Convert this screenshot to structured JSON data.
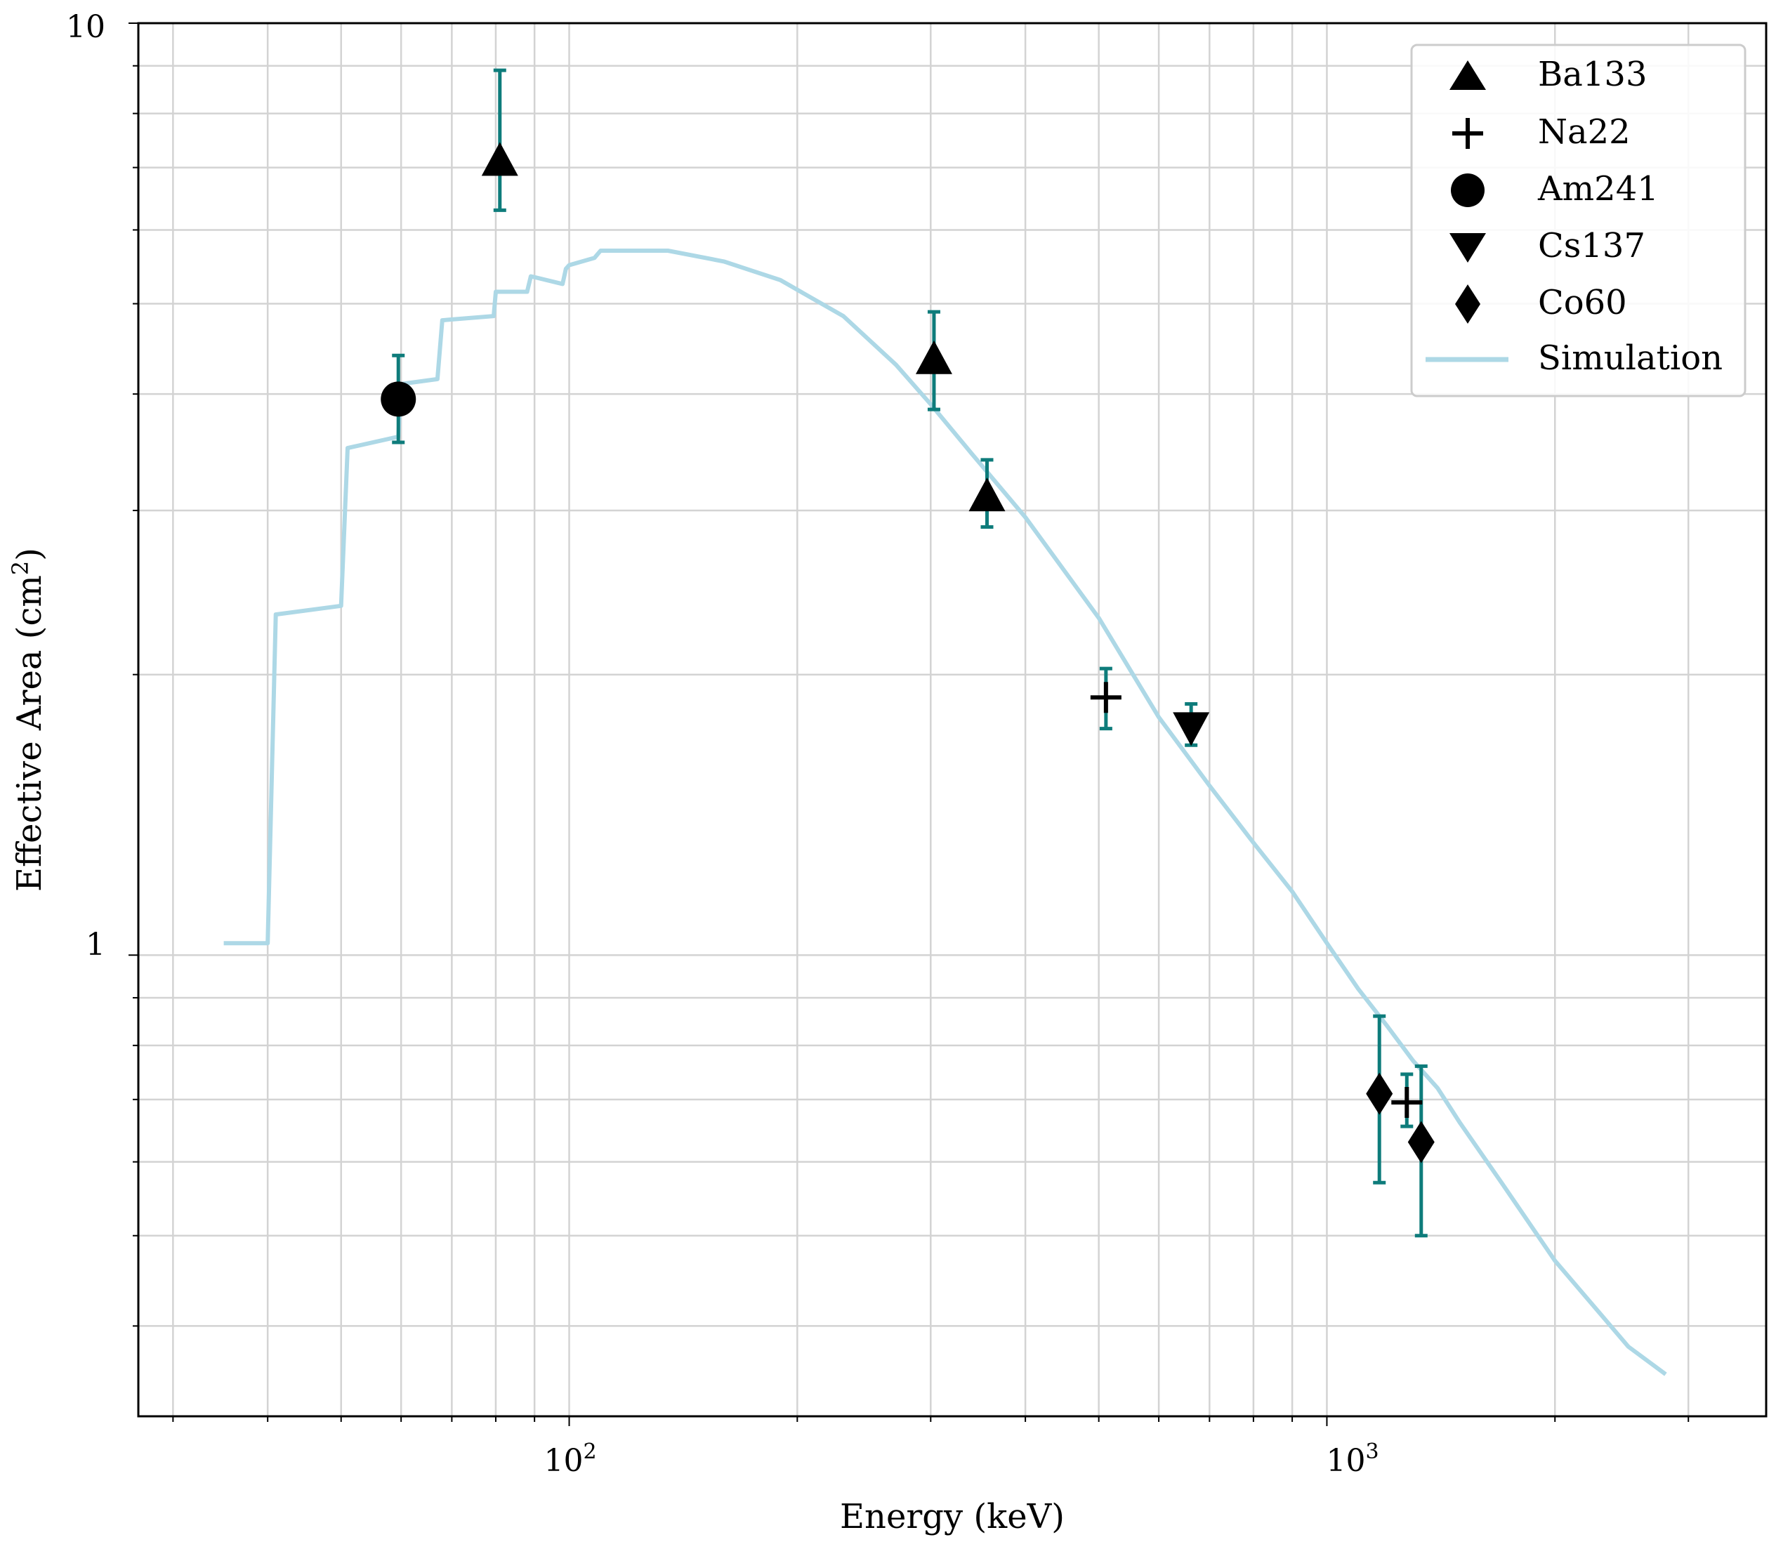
{
  "chart_data": {
    "type": "scatter",
    "xscale": "log",
    "yscale": "log",
    "xlim": [
      27,
      3800
    ],
    "ylim": [
      0.32,
      10
    ],
    "xlabel": "Energy (keV)",
    "ylabel_main": "Effective Area (cm",
    "ylabel_sup": "2",
    "ylabel_close": ")",
    "grid": true,
    "x_major_ticks": [
      {
        "value": 100,
        "base": "10",
        "exp": "2"
      },
      {
        "value": 1000,
        "base": "10",
        "exp": "3"
      }
    ],
    "y_major_ticks": [
      {
        "value": 1,
        "label": "1"
      },
      {
        "value": 10,
        "label": "10"
      }
    ],
    "legend_position": "top-right",
    "colors": {
      "marker": "#000000",
      "errorbar": "#0e7c7b",
      "simulation": "#add8e6",
      "grid": "#d3d3d3"
    },
    "series": [
      {
        "name": "Ba133",
        "marker": "triangle-up",
        "points": [
          {
            "x": 81,
            "y": 7.1,
            "ylo": 6.3,
            "yhi": 8.9
          },
          {
            "x": 303,
            "y": 4.35,
            "ylo": 3.85,
            "yhi": 4.9
          },
          {
            "x": 356,
            "y": 3.1,
            "ylo": 2.88,
            "yhi": 3.4
          }
        ]
      },
      {
        "name": "Na22",
        "marker": "plus",
        "points": [
          {
            "x": 511,
            "y": 1.89,
            "ylo": 1.75,
            "yhi": 2.03
          },
          {
            "x": 1275,
            "y": 0.695,
            "ylo": 0.655,
            "yhi": 0.745
          }
        ]
      },
      {
        "name": "Am241",
        "marker": "circle",
        "points": [
          {
            "x": 59.5,
            "y": 3.95,
            "ylo": 3.55,
            "yhi": 4.4
          }
        ]
      },
      {
        "name": "Cs137",
        "marker": "triangle-down",
        "points": [
          {
            "x": 662,
            "y": 1.76,
            "ylo": 1.68,
            "yhi": 1.86
          }
        ]
      },
      {
        "name": "Co60",
        "marker": "diamond",
        "points": [
          {
            "x": 1173,
            "y": 0.71,
            "ylo": 0.57,
            "yhi": 0.86
          },
          {
            "x": 1332,
            "y": 0.63,
            "ylo": 0.5,
            "yhi": 0.76
          }
        ]
      }
    ],
    "simulation": {
      "name": "Simulation",
      "x": [
        35,
        40,
        41,
        50,
        51,
        59.5,
        60,
        67,
        68,
        79.5,
        80,
        88,
        89,
        98,
        99,
        100,
        108,
        110,
        135,
        160,
        190,
        230,
        270,
        300,
        340,
        400,
        500,
        600,
        700,
        800,
        900,
        1000,
        1100,
        1200,
        1300,
        1400,
        1500,
        1700,
        2000,
        2500,
        2800
      ],
      "y": [
        1.03,
        1.03,
        2.32,
        2.37,
        3.5,
        3.6,
        4.1,
        4.15,
        4.8,
        4.85,
        5.15,
        5.15,
        5.35,
        5.25,
        5.45,
        5.5,
        5.6,
        5.7,
        5.7,
        5.55,
        5.3,
        4.85,
        4.3,
        3.9,
        3.45,
        2.95,
        2.3,
        1.8,
        1.52,
        1.32,
        1.17,
        1.03,
        0.92,
        0.84,
        0.77,
        0.72,
        0.66,
        0.57,
        0.47,
        0.38,
        0.355
      ]
    }
  }
}
